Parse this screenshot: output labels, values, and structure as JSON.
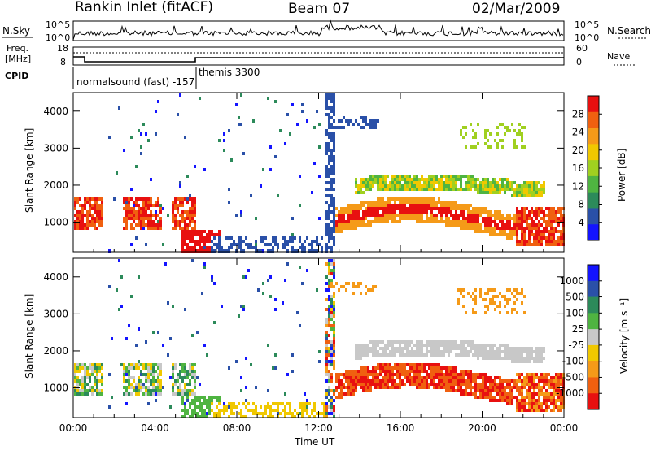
{
  "header": {
    "radar": "Rankin Inlet (fitACF)",
    "beam": "Beam 07",
    "date": "02/Mar/2009"
  },
  "noise_panel": {
    "left_label": "N.Sky",
    "left_ticks": [
      "10^5",
      "10^0"
    ],
    "right_label": "N.Search",
    "right_ticks": [
      "10^5",
      "10^0"
    ]
  },
  "freq_panel": {
    "left_label_1": "Freq.",
    "left_label_2": "[MHz]",
    "left_ticks": [
      "18",
      "8"
    ],
    "right_label": "Nave",
    "right_ticks": [
      "60",
      "0"
    ],
    "cpid_label": "CPID",
    "cpid_1": "normalsound (fast) -157",
    "cpid_2": "themis 3300"
  },
  "colors": {
    "power_scale": [
      "#1414ff",
      "#2a50a8",
      "#2c8a5a",
      "#4fb441",
      "#a0d020",
      "#f0c800",
      "#f59a18",
      "#f06010",
      "#e81010"
    ],
    "velocity_scale": [
      "#1414ff",
      "#2a50a8",
      "#2c8a5a",
      "#4fb441",
      "#c8c8c8",
      "#f0c800",
      "#f59a18",
      "#f06010",
      "#e81010"
    ]
  },
  "chart_data": [
    {
      "type": "heatmap",
      "panel": "power",
      "ylabel": "Slant Range [km]",
      "yticks": [
        "1000",
        "2000",
        "3000",
        "4000"
      ],
      "ylim": [
        200,
        4500
      ],
      "xticks": [
        "00:00",
        "04:00",
        "08:00",
        "12:00",
        "16:00",
        "20:00",
        "00:00"
      ],
      "colorbar_label": "Power [dB]",
      "colorbar_ticks": [
        "4",
        "8",
        "12",
        "16",
        "20",
        "24",
        "28"
      ]
    },
    {
      "type": "heatmap",
      "panel": "velocity",
      "ylabel": "Slant Range [km]",
      "yticks": [
        "1000",
        "2000",
        "3000",
        "4000"
      ],
      "ylim": [
        200,
        4500
      ],
      "xticks": [
        "00:00",
        "04:00",
        "08:00",
        "12:00",
        "16:00",
        "20:00",
        "00:00"
      ],
      "xlabel": "Time UT",
      "colorbar_label": "Velocity [m s⁻¹]",
      "colorbar_ticks": [
        "1000",
        "500",
        "100",
        "25",
        "-25",
        "-100",
        "-500",
        "-1000"
      ]
    }
  ]
}
